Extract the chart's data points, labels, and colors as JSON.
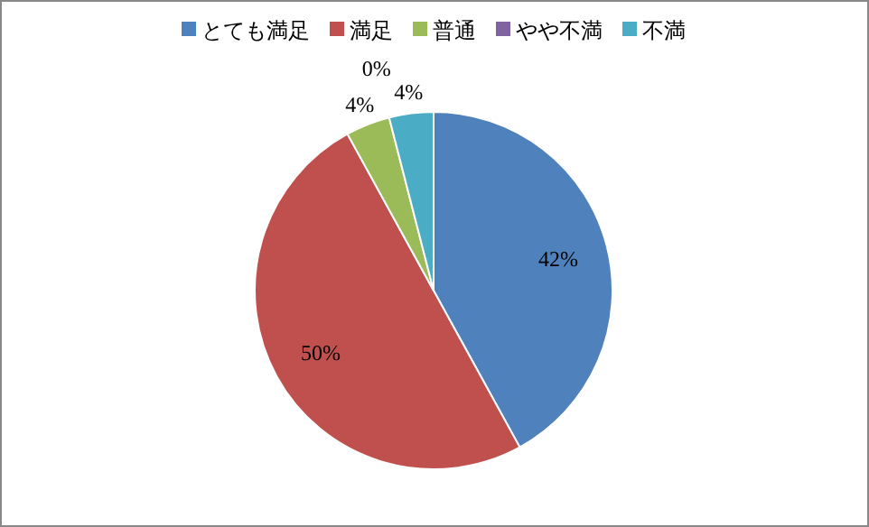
{
  "chart_data": {
    "type": "pie",
    "categories": [
      "とても満足",
      "満足",
      "普通",
      "やや不満",
      "不満"
    ],
    "values": [
      42,
      50,
      4,
      0,
      4
    ],
    "colors": [
      "#4f81bd",
      "#c0504d",
      "#9bbb59",
      "#8064a2",
      "#4bacc6"
    ],
    "value_labels": [
      "42%",
      "50%",
      "4%",
      "0%",
      "4%"
    ],
    "legend": "top"
  }
}
